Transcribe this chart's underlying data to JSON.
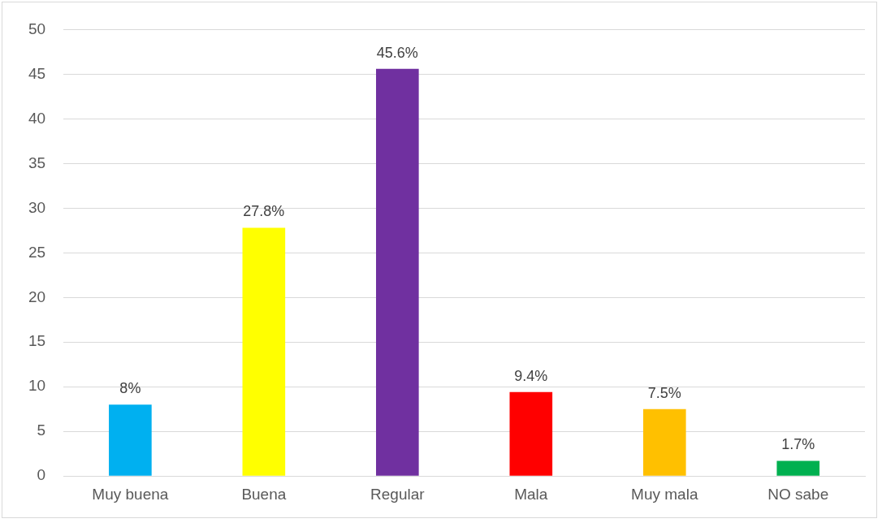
{
  "chart_data": {
    "type": "bar",
    "categories": [
      "Muy buena",
      "Buena",
      "Regular",
      "Mala",
      "Muy mala",
      "NO sabe"
    ],
    "values": [
      8,
      27.8,
      45.6,
      9.4,
      7.5,
      1.7
    ],
    "colors": [
      "#00b0f0",
      "#ffff00",
      "#7030a0",
      "#ff0000",
      "#ffc000",
      "#00b050"
    ],
    "value_labels": [
      "8%",
      "27.8%",
      "45.6%",
      "9.4%",
      "7.5%",
      "1.7%"
    ],
    "ylim": [
      0,
      50
    ],
    "yticks": [
      0,
      5,
      10,
      15,
      20,
      25,
      30,
      35,
      40,
      45,
      50
    ],
    "grid": "y",
    "legend": false
  }
}
